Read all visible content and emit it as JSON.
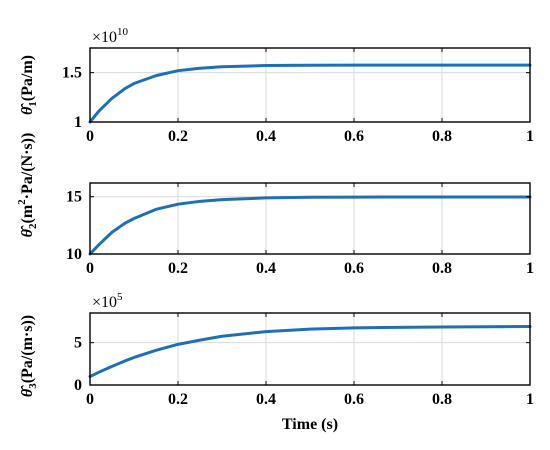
{
  "colors": {
    "line": "#1f6fb5"
  },
  "chart_data": [
    {
      "type": "line",
      "ylabel": "θ̂1(Pa/m)",
      "xlabel": "",
      "y_multiplier": "×10",
      "y_multiplier_exp": "10",
      "xlim": [
        0,
        1
      ],
      "ylim": [
        1,
        1.75
      ],
      "xticks": [
        "0",
        "0.2",
        "0.4",
        "0.6",
        "0.8",
        "1"
      ],
      "yticks": [
        "1",
        "1.5"
      ],
      "yticks_values": [
        1,
        1.5
      ],
      "grid": true,
      "series": [
        {
          "x": [
            0,
            0.02,
            0.05,
            0.08,
            0.1,
            0.15,
            0.2,
            0.25,
            0.3,
            0.4,
            0.5,
            0.6,
            0.8,
            1.0
          ],
          "y": [
            1.0,
            1.11,
            1.24,
            1.34,
            1.39,
            1.47,
            1.52,
            1.545,
            1.56,
            1.572,
            1.575,
            1.576,
            1.577,
            1.577
          ]
        }
      ]
    },
    {
      "type": "line",
      "ylabel": "θ̂2(m²·Pa/(N·s))",
      "xlabel": "",
      "xlim": [
        0,
        1
      ],
      "ylim": [
        10,
        16.2
      ],
      "xticks": [
        "0",
        "0.2",
        "0.4",
        "0.6",
        "0.8",
        "1"
      ],
      "yticks": [
        "10",
        "15"
      ],
      "yticks_values": [
        10,
        15
      ],
      "grid": true,
      "series": [
        {
          "x": [
            0,
            0.02,
            0.05,
            0.08,
            0.1,
            0.15,
            0.2,
            0.25,
            0.3,
            0.4,
            0.5,
            0.6,
            0.8,
            1.0
          ],
          "y": [
            10.0,
            10.8,
            11.9,
            12.7,
            13.1,
            13.9,
            14.35,
            14.6,
            14.75,
            14.9,
            14.95,
            14.97,
            14.98,
            14.98
          ]
        }
      ]
    },
    {
      "type": "line",
      "ylabel": "θ̂3(Pa/(m·s))",
      "xlabel": "Time (s)",
      "y_multiplier": "×10",
      "y_multiplier_exp": "5",
      "xlim": [
        0,
        1
      ],
      "ylim": [
        0,
        8.5
      ],
      "xticks": [
        "0",
        "0.2",
        "0.4",
        "0.6",
        "0.8",
        "1"
      ],
      "yticks": [
        "0",
        "5"
      ],
      "yticks_values": [
        0,
        5
      ],
      "grid": true,
      "series": [
        {
          "x": [
            0,
            0.02,
            0.05,
            0.08,
            0.1,
            0.15,
            0.2,
            0.25,
            0.3,
            0.4,
            0.5,
            0.6,
            0.8,
            1.0
          ],
          "y": [
            1.0,
            1.5,
            2.2,
            2.85,
            3.25,
            4.1,
            4.8,
            5.3,
            5.75,
            6.3,
            6.6,
            6.75,
            6.85,
            6.9
          ]
        }
      ]
    }
  ]
}
